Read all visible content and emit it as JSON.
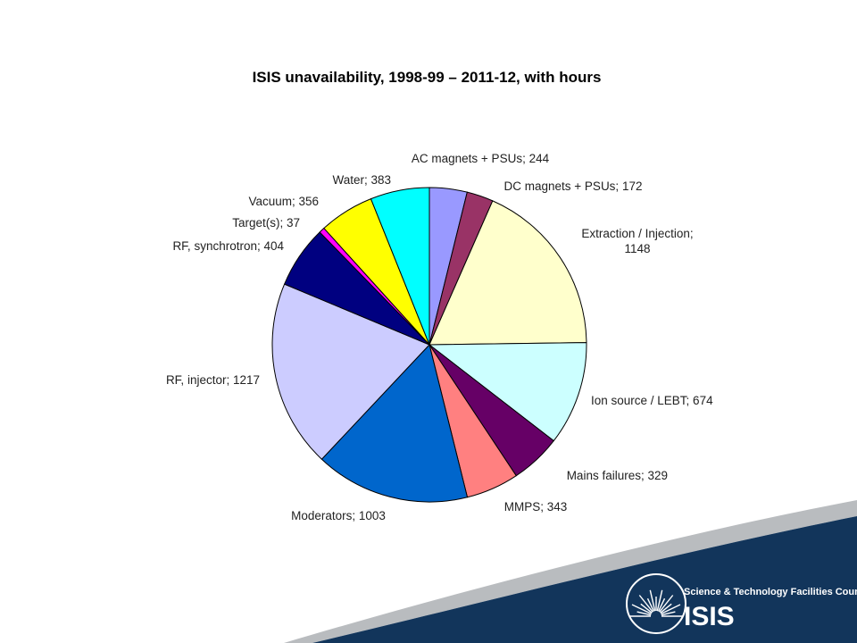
{
  "slide": {
    "logo_council": "Science & Technology Facilities Council",
    "logo_name": "ISIS",
    "colors": {
      "band_navy": "#12355B",
      "band_stripe": "#B9BCBF"
    }
  },
  "chart_data": {
    "type": "pie",
    "title": "ISIS unavailability,  1998-99 – 2011-12, with hours",
    "slices": [
      {
        "label": "AC magnets + PSUs; 244",
        "name": "AC magnets + PSUs",
        "value": 244,
        "color": "#9999FF"
      },
      {
        "label": "DC magnets + PSUs; 172",
        "name": "DC magnets + PSUs",
        "value": 172,
        "color": "#993366"
      },
      {
        "label": "Extraction / Injection;\n1148",
        "name": "Extraction / Injection",
        "value": 1148,
        "color": "#FFFFCC"
      },
      {
        "label": "Ion source / LEBT; 674",
        "name": "Ion source / LEBT",
        "value": 674,
        "color": "#CCFFFF"
      },
      {
        "label": "Mains failures; 329",
        "name": "Mains failures",
        "value": 329,
        "color": "#660066"
      },
      {
        "label": "MMPS; 343",
        "name": "MMPS",
        "value": 343,
        "color": "#FF8080"
      },
      {
        "label": "Moderators; 1003",
        "name": "Moderators",
        "value": 1003,
        "color": "#0066CC"
      },
      {
        "label": "RF, injector; 1217",
        "name": "RF, injector",
        "value": 1217,
        "color": "#CCCCFF"
      },
      {
        "label": "RF, synchrotron; 404",
        "name": "RF, synchrotron",
        "value": 404,
        "color": "#000080"
      },
      {
        "label": "Target(s);  37",
        "name": "Target(s)",
        "value": 37,
        "color": "#FF00FF"
      },
      {
        "label": "Vacuum; 356",
        "name": "Vacuum",
        "value": 356,
        "color": "#FFFF00"
      },
      {
        "label": "Water;  383",
        "name": "Water",
        "value": 383,
        "color": "#00FFFF"
      }
    ],
    "start_angle": "12 o'clock",
    "direction": "clockwise",
    "legend": "none"
  }
}
